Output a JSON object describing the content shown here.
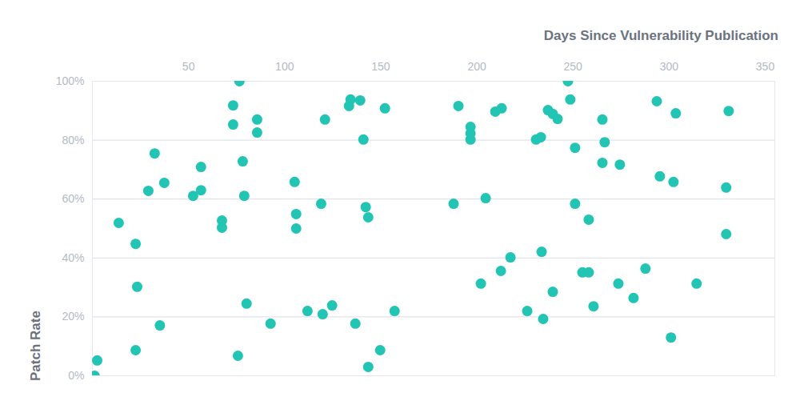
{
  "chart_data": {
    "type": "scatter",
    "x_label": "Days Since Vulnerability Publication",
    "y_label": "Patch Rate",
    "x": [
      2.5,
      1.2,
      13.7,
      22.5,
      23.3,
      22.5,
      32.4,
      29.1,
      37.4,
      35.1,
      56.5,
      52.4,
      56.5,
      67.4,
      67.4,
      73.2,
      73.2,
      76.5,
      78.2,
      79.0,
      85.7,
      85.7,
      75.7,
      80.2,
      92.7,
      105.2,
      106.0,
      106.0,
      111.9,
      119.0,
      121.0,
      119.8,
      124.7,
      133.5,
      134.3,
      139.3,
      141.0,
      142.2,
      143.5,
      152.2,
      136.8,
      149.7,
      143.5,
      157.2,
      187.9,
      190.4,
      196.7,
      196.7,
      196.7,
      204.6,
      202.1,
      209.6,
      212.9,
      212.5,
      217.5,
      230.8,
      233.3,
      233.7,
      226.2,
      234.5,
      237.0,
      239.5,
      242.0,
      239.5,
      247.4,
      248.6,
      251.1,
      251.1,
      265.3,
      266.5,
      265.3,
      274.4,
      258.2,
      254.9,
      258.2,
      260.7,
      273.6,
      281.5,
      287.7,
      293.6,
      295.2,
      303.5,
      302.3,
      301.0,
      314.3,
      331.0,
      329.7,
      329.7
    ],
    "values": [
      5.2,
      0,
      51.9,
      44.8,
      30.2,
      8.7,
      75.5,
      62.8,
      65.5,
      17.1,
      70.9,
      61.1,
      63.0,
      52.7,
      50.3,
      91.8,
      85.3,
      100,
      72.8,
      61.1,
      87.0,
      82.6,
      6.8,
      24.5,
      17.7,
      65.8,
      54.9,
      50.0,
      22.0,
      58.4,
      87.0,
      20.9,
      23.9,
      91.6,
      93.8,
      93.5,
      80.2,
      57.3,
      53.8,
      90.8,
      17.7,
      8.7,
      3.0,
      22.0,
      58.4,
      91.6,
      84.5,
      82.3,
      80.2,
      60.3,
      31.3,
      89.7,
      90.8,
      35.6,
      40.2,
      80.2,
      81.0,
      42.1,
      22.0,
      19.3,
      90.2,
      88.9,
      87.2,
      28.5,
      100,
      93.8,
      77.4,
      58.4,
      87.0,
      79.3,
      72.3,
      71.7,
      53.0,
      35.1,
      35.1,
      23.6,
      31.3,
      26.4,
      36.4,
      93.2,
      67.7,
      89.1,
      65.8,
      13.0,
      31.3,
      89.9,
      63.9,
      48.1
    ],
    "color": "#22c4b3",
    "marker": "circle",
    "xlim": [
      0,
      355
    ],
    "xticks": [
      50,
      100,
      150,
      200,
      250,
      300,
      350
    ],
    "ylim": [
      0,
      100
    ],
    "yticks": [
      {
        "value": 0,
        "label": "0%"
      },
      {
        "value": 20,
        "label": "20%"
      },
      {
        "value": 40,
        "label": "40%"
      },
      {
        "value": 60,
        "label": "60%"
      },
      {
        "value": 80,
        "label": "80%"
      },
      {
        "value": 100,
        "label": "100%"
      }
    ],
    "grid": true
  }
}
